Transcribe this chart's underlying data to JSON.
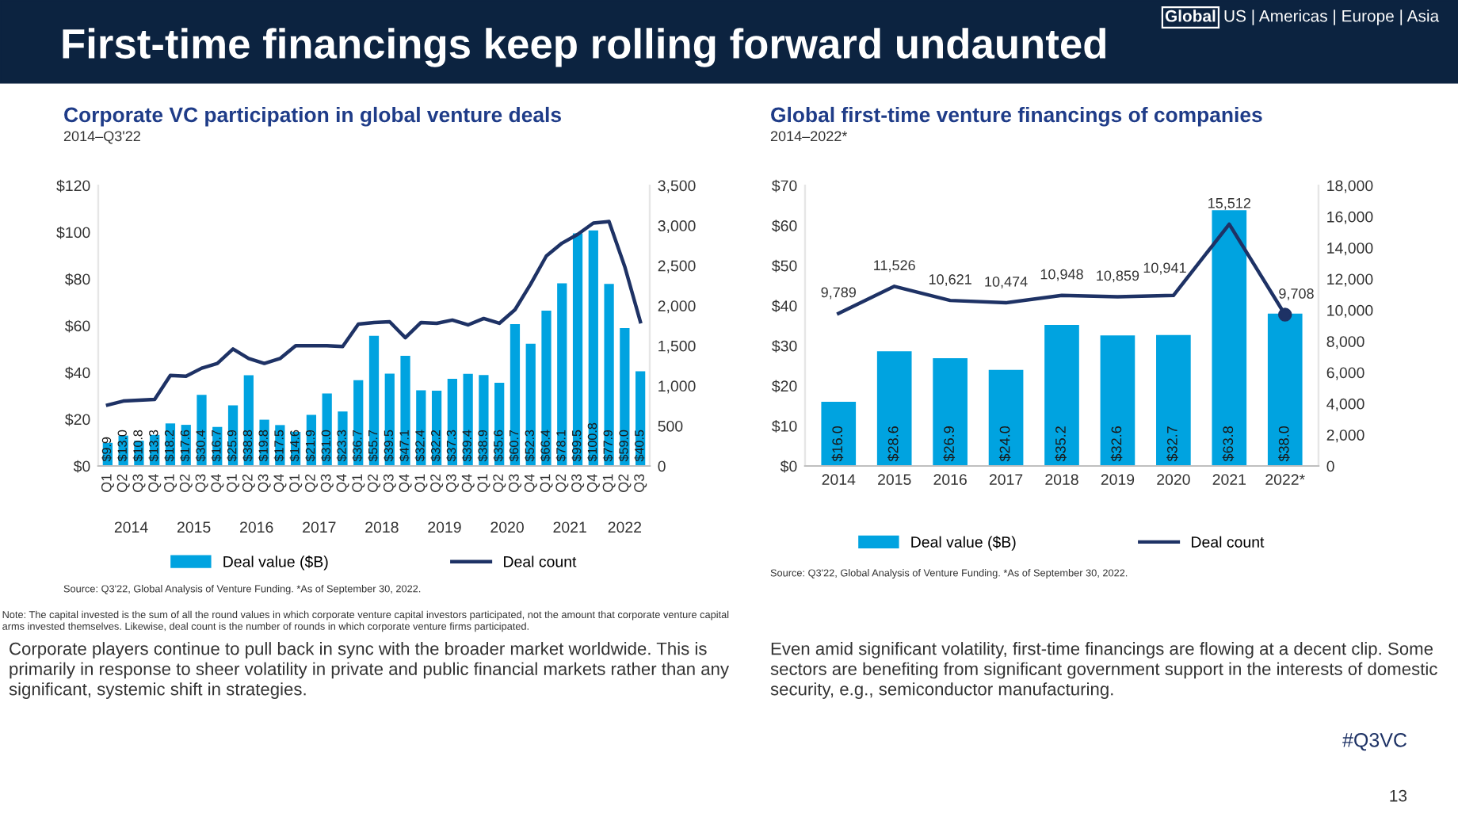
{
  "chart_data": [
    {
      "type": "bar",
      "title": "Corporate VC participation in global venture deals",
      "subtitle": "2014–Q3'22",
      "categories": [
        "Q1",
        "Q2",
        "Q3",
        "Q4",
        "Q1",
        "Q2",
        "Q3",
        "Q4",
        "Q1",
        "Q2",
        "Q3",
        "Q4",
        "Q1",
        "Q2",
        "Q3",
        "Q4",
        "Q1",
        "Q2",
        "Q3",
        "Q4",
        "Q1",
        "Q2",
        "Q3",
        "Q4",
        "Q1",
        "Q2",
        "Q3",
        "Q4",
        "Q1",
        "Q2",
        "Q3",
        "Q4",
        "Q1",
        "Q2",
        "Q3"
      ],
      "series": [
        {
          "name": "Deal value ($B)",
          "type": "bar",
          "color": "#00a3e0",
          "values": [
            9.9,
            13.0,
            10.8,
            13.3,
            18.2,
            17.6,
            30.4,
            16.7,
            25.9,
            38.8,
            19.8,
            17.5,
            14.6,
            21.9,
            31.0,
            23.3,
            36.7,
            55.7,
            39.5,
            47.1,
            32.4,
            32.2,
            37.3,
            39.4,
            38.9,
            35.6,
            60.7,
            52.3,
            66.4,
            78.1,
            99.5,
            100.8,
            77.9,
            59.0,
            40.5
          ],
          "value_labels": [
            "$9.9",
            "$13.0",
            "$10.8",
            "$13.3",
            "$18.2",
            "$17.6",
            "$30.4",
            "$16.7",
            "$25.9",
            "$38.8",
            "$19.8",
            "$17.5",
            "$14.6",
            "$21.9",
            "$31.0",
            "$23.3",
            "$36.7",
            "$55.7",
            "$39.5",
            "$47.1",
            "$32.4",
            "$32.2",
            "$37.3",
            "$39.4",
            "$38.9",
            "$35.6",
            "$60.7",
            "$52.3",
            "$66.4",
            "$78.1",
            "$99.5",
            "$100.8",
            "$77.9",
            "$59.0",
            "$40.5"
          ]
        },
        {
          "name": "Deal count",
          "type": "line",
          "axis": "y2",
          "color": "#1e3265",
          "values": [
            760,
            810,
            820,
            830,
            1130,
            1120,
            1220,
            1280,
            1460,
            1340,
            1280,
            1340,
            1500,
            1500,
            1500,
            1490,
            1770,
            1790,
            1800,
            1600,
            1790,
            1780,
            1820,
            1760,
            1840,
            1780,
            1950,
            2270,
            2620,
            2780,
            2890,
            3030,
            3050,
            2490,
            1800
          ]
        }
      ],
      "ylim": [
        0,
        120
      ],
      "yticks": [
        {
          "value": 0,
          "label": "$0"
        },
        {
          "value": 20,
          "label": "$20"
        },
        {
          "value": 40,
          "label": "$40"
        },
        {
          "value": 60,
          "label": "$60"
        },
        {
          "value": 80,
          "label": "$80"
        },
        {
          "value": 100,
          "label": "$100"
        },
        {
          "value": 120,
          "label": "$120"
        }
      ],
      "y2lim": [
        0,
        3500
      ],
      "y2ticks": [
        0,
        500,
        {
          "value": 1000,
          "label": "1,000"
        },
        {
          "value": 1500,
          "label": "1,500"
        },
        {
          "value": 2000,
          "label": "2,000"
        },
        {
          "value": 2500,
          "label": "2,500"
        },
        {
          "value": 3000,
          "label": "3,000"
        },
        {
          "value": 3500,
          "label": "3,500"
        }
      ],
      "grid": false,
      "legend": "bottom",
      "annotations": [
        "2014",
        "2015",
        "2016",
        "2017",
        "2018",
        "2019",
        "2020",
        "2021",
        "2022",
        "Source: Q3'22, Global Analysis of Venture Funding. *As of September 30, 2022.",
        "Note: The capital invested is the sum of all the round values in which corporate venture capital investors participated, not the amount that corporate venture capital arms invested themselves. Likewise, deal count is the number of rounds in which corporate venture firms participated.",
        "Corporate players continue to pull back in sync with the broader market worldwide. This is primarily in response to sheer volatility in private and public financial markets rather than any significant, systemic shift in strategies.",
        "First-time financings keep rolling forward undaunted",
        "Global",
        "US | Americas | Europe | Asia",
        "#Q3VC",
        "13"
      ]
    },
    {
      "type": "bar",
      "title": "Global first-time venture financings of companies",
      "subtitle": "2014–2022*",
      "categories": [
        "2014",
        "2015",
        "2016",
        "2017",
        "2018",
        "2019",
        "2020",
        "2021",
        "2022*"
      ],
      "series": [
        {
          "name": "Deal value ($B)",
          "type": "bar",
          "color": "#00a3e0",
          "values": [
            16.0,
            28.6,
            26.9,
            24.0,
            35.2,
            32.6,
            32.7,
            63.8,
            38.0
          ],
          "value_labels": [
            "$16.0",
            "$28.6",
            "$26.9",
            "$24.0",
            "$35.2",
            "$32.6",
            "$32.7",
            "$63.8",
            "$38.0"
          ]
        },
        {
          "name": "Deal count",
          "type": "line",
          "axis": "y2",
          "color": "#1e3265",
          "values": [
            9789,
            11526,
            10621,
            10474,
            10948,
            10859,
            10941,
            15512,
            9708
          ],
          "value_labels": [
            "9,789",
            "11,526",
            "10,621",
            "10,474",
            "10,948",
            "10,859",
            "10,941",
            "15,512",
            "9,708"
          ]
        },
        {
          "type": "scatter",
          "axis": "y2",
          "color": "#1e3265",
          "marker": "circle",
          "values": [
            null,
            null,
            null,
            null,
            null,
            null,
            null,
            null,
            9708
          ]
        }
      ],
      "ylim": [
        0,
        70
      ],
      "yticks": [
        {
          "value": 0,
          "label": "$0"
        },
        {
          "value": 10,
          "label": "$10"
        },
        {
          "value": 20,
          "label": "$20"
        },
        {
          "value": 30,
          "label": "$30"
        },
        {
          "value": 40,
          "label": "$40"
        },
        {
          "value": 50,
          "label": "$50"
        },
        {
          "value": 60,
          "label": "$60"
        },
        {
          "value": 70,
          "label": "$70"
        }
      ],
      "y2lim": [
        0,
        18000
      ],
      "y2ticks": [
        0,
        {
          "value": 2000,
          "label": "2,000"
        },
        {
          "value": 4000,
          "label": "4,000"
        },
        {
          "value": 6000,
          "label": "6,000"
        },
        {
          "value": 8000,
          "label": "8,000"
        },
        {
          "value": 10000,
          "label": "10,000"
        },
        {
          "value": 12000,
          "label": "12,000"
        },
        {
          "value": 14000,
          "label": "14,000"
        },
        {
          "value": 16000,
          "label": "16,000"
        },
        {
          "value": 18000,
          "label": "18,000"
        }
      ],
      "grid": false,
      "legend": "bottom",
      "annotations": [
        "Source: Q3'22, Global Analysis of Venture Funding. *As of September 30, 2022.",
        "Even amid significant volatility, first-time financings are flowing at a decent clip. Some sectors are benefiting from significant government support in the interests of domestic security, e.g., semiconductor manufacturing."
      ]
    }
  ]
}
